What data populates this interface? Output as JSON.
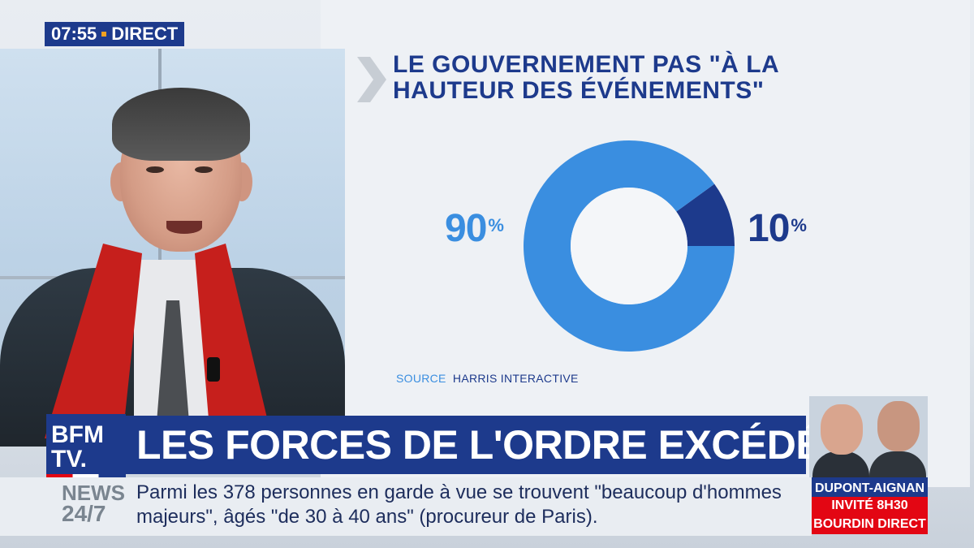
{
  "clock": {
    "time": "07:55",
    "live": "DIRECT"
  },
  "graphic": {
    "title": "LE GOUVERNEMENT PAS \"À LA HAUTEUR DES ÉVÉNEMENTS\"",
    "left_value": "90",
    "right_value": "10",
    "percent_sign": "%",
    "source_label": "SOURCE",
    "source_name": "HARRIS INTERACTIVE"
  },
  "chart_data": {
    "type": "pie",
    "categories": [
      "",
      ""
    ],
    "values": [
      90,
      10
    ],
    "colors": [
      "#3a8ee0",
      "#1d3a8c"
    ],
    "title": "LE GOUVERNEMENT PAS \"À LA HAUTEUR DES ÉVÉNEMENTS\""
  },
  "logo": {
    "line1": "BFM",
    "line2": "TV."
  },
  "headline": {
    "text": "LES FORCES DE L'ORDRE EXCÉDÉES",
    "dot": "."
  },
  "ticker": {
    "news_line1": "NEWS",
    "news_line2": "24/7",
    "text": "Parmi les 378 personnes en garde à vue se trouvent \"beaucoup d'hommes majeurs\", âgés \"de 30 à 40 ans\" (procureur de Paris)."
  },
  "guest": {
    "names": "DUPONT-AIGNAN",
    "time": "INVITÉ 8H30",
    "show": "BOURDIN DIRECT"
  },
  "colors": {
    "brand_blue": "#1d3a8c",
    "light_blue": "#3a8ee0",
    "red": "#e30613",
    "accent": "#f0a020"
  }
}
